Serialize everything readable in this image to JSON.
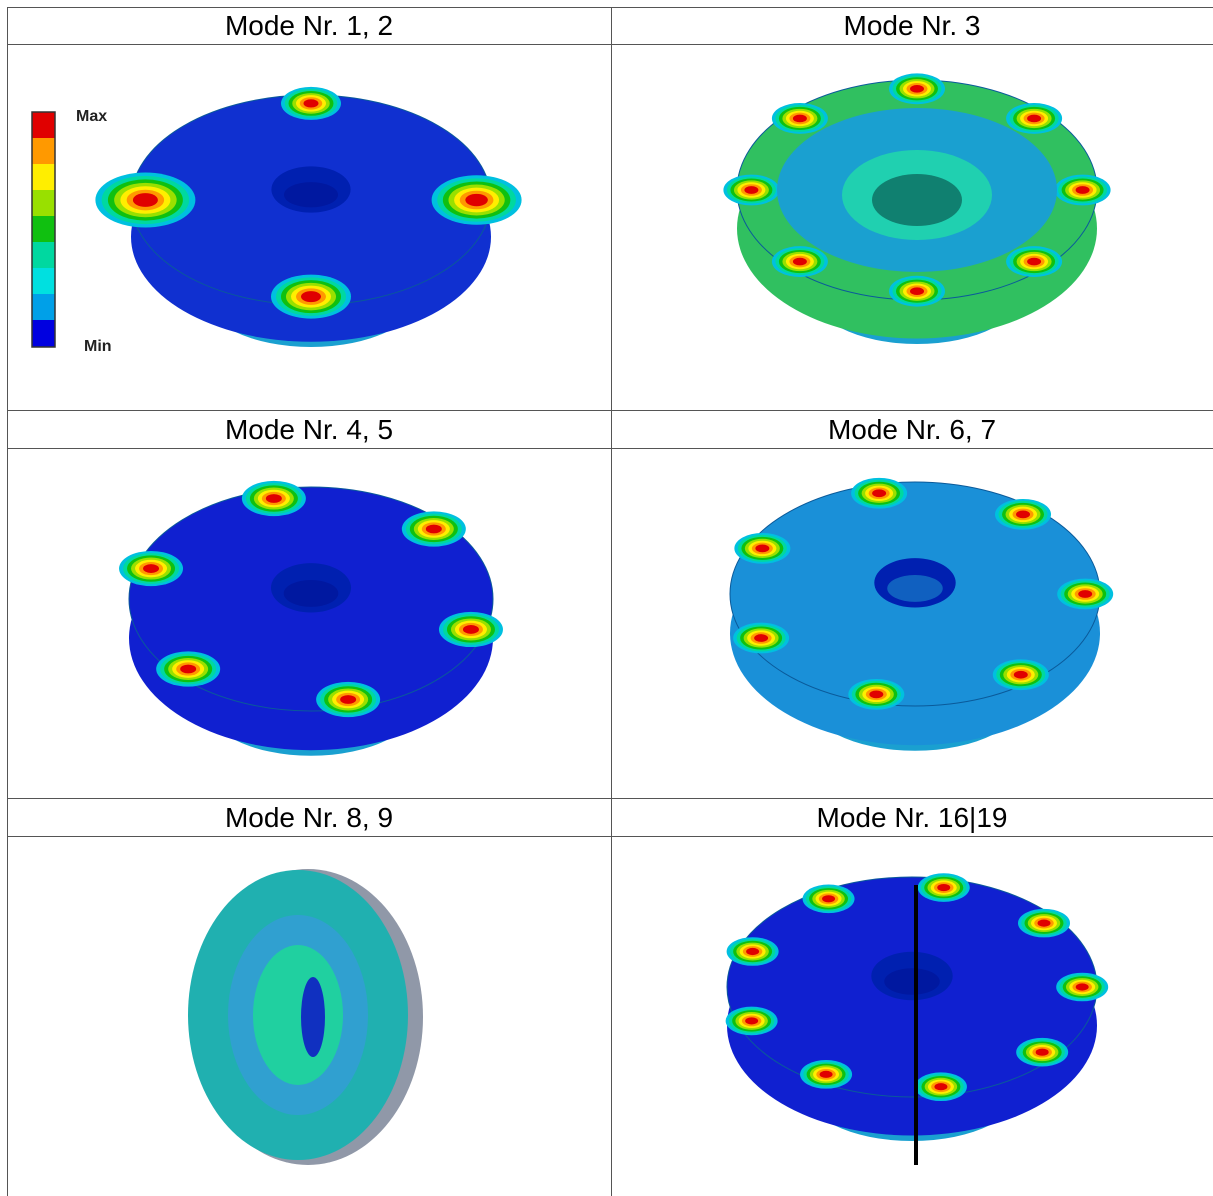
{
  "cells": [
    {
      "title": "Mode Nr. 1, 2"
    },
    {
      "title": "Mode Nr. 3"
    },
    {
      "title": "Mode Nr. 4, 5"
    },
    {
      "title": "Mode Nr. 6, 7"
    },
    {
      "title": "Mode Nr. 8, 9"
    },
    {
      "title": "Mode Nr. 16|19"
    }
  ],
  "legend": {
    "max": "Max",
    "min": "Min"
  }
}
